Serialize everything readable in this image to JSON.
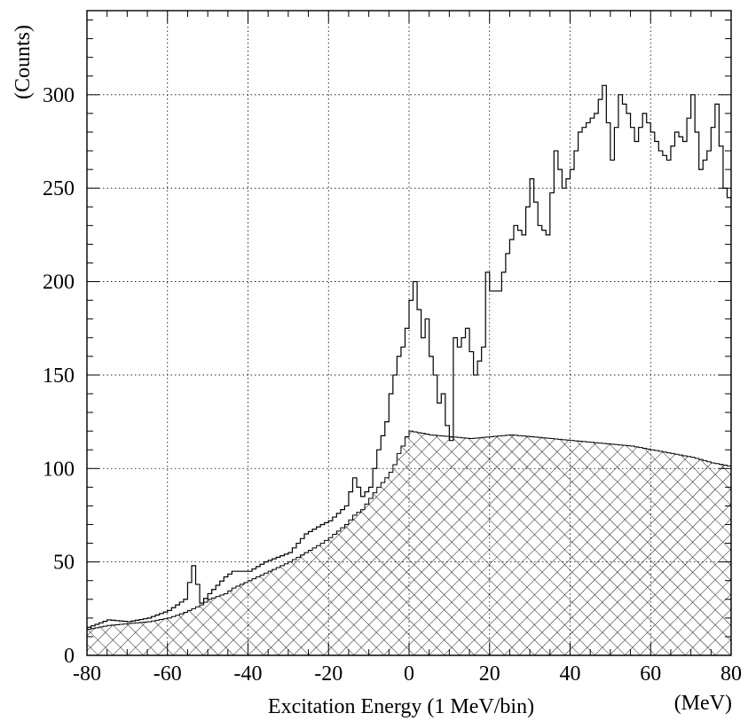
{
  "chart_data": {
    "type": "histogram",
    "title": "",
    "xlabel": "Excitation Energy (1 MeV/bin)",
    "xunit": "(MeV)",
    "ylabel": "(Counts)",
    "xlim": [
      -80,
      80
    ],
    "ylim": [
      0,
      345
    ],
    "grid": true,
    "bin_width": 1,
    "xticks": [
      "-80",
      "-60",
      "-40",
      "-20",
      "0",
      "20",
      "40",
      "60",
      "80"
    ],
    "xtick_values": [
      -80,
      -60,
      -40,
      -20,
      0,
      20,
      40,
      60,
      80
    ],
    "yticks": [
      "0",
      "50",
      "100",
      "150",
      "200",
      "250",
      "300"
    ],
    "ytick_values": [
      0,
      50,
      100,
      150,
      200,
      250,
      300
    ],
    "series": [
      {
        "style": "open",
        "x": [
          -80,
          -75,
          -70,
          -65,
          -60,
          -56,
          -54,
          -52,
          -50,
          -46,
          -44,
          -40,
          -36,
          -30,
          -26,
          -22,
          -20,
          -16,
          -14,
          -12,
          -10,
          -8,
          -6,
          -5,
          -4,
          -3,
          -2,
          -1,
          0,
          1,
          2,
          3,
          4,
          5,
          6,
          7,
          8,
          9,
          10,
          11,
          12,
          14,
          16,
          18,
          19,
          20,
          22,
          24,
          26,
          28,
          30,
          32,
          34,
          36,
          38,
          40,
          42,
          44,
          46,
          48,
          50,
          52,
          54,
          56,
          58,
          60,
          62,
          64,
          66,
          68,
          70,
          72,
          74,
          76,
          78,
          80
        ],
        "values": [
          15,
          19,
          18,
          20,
          24,
          30,
          48,
          28,
          33,
          42,
          45,
          45,
          50,
          55,
          65,
          70,
          72,
          80,
          95,
          85,
          90,
          110,
          125,
          140,
          150,
          160,
          165,
          175,
          190,
          200,
          185,
          170,
          180,
          160,
          150,
          135,
          140,
          123,
          115,
          170,
          165,
          175,
          150,
          165,
          205,
          195,
          195,
          215,
          230,
          225,
          255,
          230,
          225,
          270,
          250,
          260,
          280,
          285,
          290,
          305,
          265,
          300,
          290,
          275,
          290,
          280,
          270,
          265,
          280,
          275,
          300,
          260,
          270,
          295,
          250,
          240
        ]
      },
      {
        "style": "hatched",
        "x": [
          -80,
          -75,
          -70,
          -65,
          -60,
          -56,
          -54,
          -52,
          -50,
          -46,
          -44,
          -40,
          -36,
          -30,
          -26,
          -22,
          -20,
          -16,
          -14,
          -12,
          -10,
          -8,
          -6,
          -5,
          -4,
          -3,
          -2,
          -1,
          0,
          5,
          10,
          15,
          20,
          25,
          30,
          35,
          40,
          45,
          50,
          55,
          60,
          65,
          70,
          75,
          80
        ],
        "values": [
          14,
          16,
          17,
          18,
          20,
          23,
          25,
          27,
          30,
          33,
          36,
          40,
          44,
          50,
          55,
          60,
          63,
          70,
          75,
          78,
          84,
          90,
          95,
          98,
          102,
          108,
          112,
          117,
          120,
          118,
          117,
          116,
          117,
          118,
          117,
          116,
          115,
          114,
          113,
          112,
          110,
          108,
          106,
          103,
          101
        ]
      }
    ]
  }
}
